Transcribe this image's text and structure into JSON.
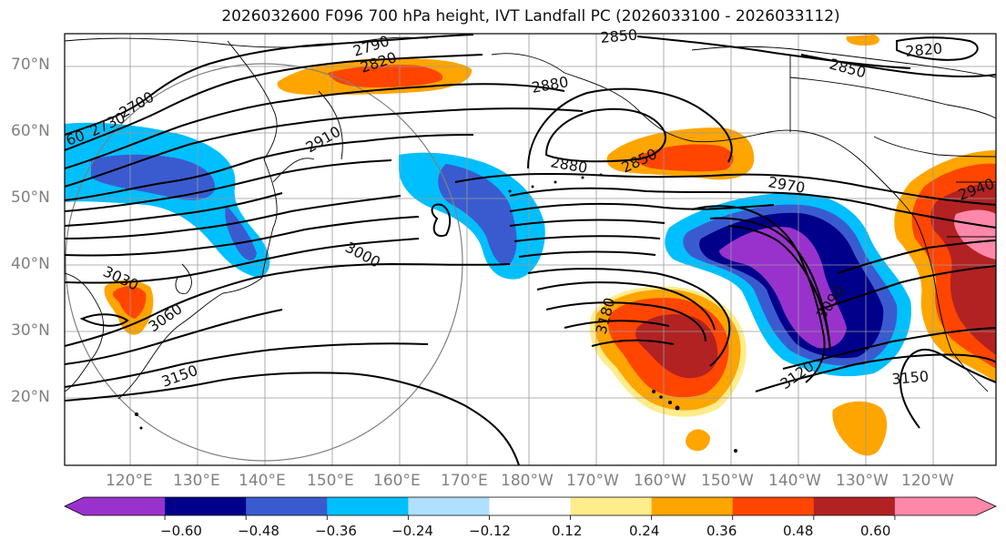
{
  "title": "2026032600 F096 700 hPa height, IVT Landfall PC (2026033100 - 2026033112)",
  "lat_labels": [
    "70°N",
    "60°N",
    "50°N",
    "40°N",
    "30°N",
    "20°N"
  ],
  "lon_labels": [
    "120°E",
    "130°E",
    "140°E",
    "150°E",
    "160°E",
    "170°E",
    "180°W",
    "170°W",
    "160°W",
    "150°W",
    "140°W",
    "130°W",
    "120°W"
  ],
  "contour_labels": [
    "2730",
    "2700",
    "2790",
    "2820",
    "2850",
    "2880",
    "2910",
    "2880",
    "2850",
    "2850",
    "2820",
    "2970",
    "2940",
    "3000",
    "3030",
    "3060",
    "3150",
    "3180",
    "3090",
    "3120",
    "3150",
    "60"
  ],
  "colorbar": {
    "colors": [
      "#9932cc",
      "#00008b",
      "#3a5bcf",
      "#00bfff",
      "#b0e0ff",
      "#ffffff",
      "#ffec8b",
      "#ffa500",
      "#ff4500",
      "#b22222",
      "#ff88aa"
    ],
    "labels": [
      "−0.60",
      "−0.48",
      "−0.36",
      "−0.24",
      "−0.12",
      "0.12",
      "0.24",
      "0.36",
      "0.48",
      "0.60"
    ]
  }
}
